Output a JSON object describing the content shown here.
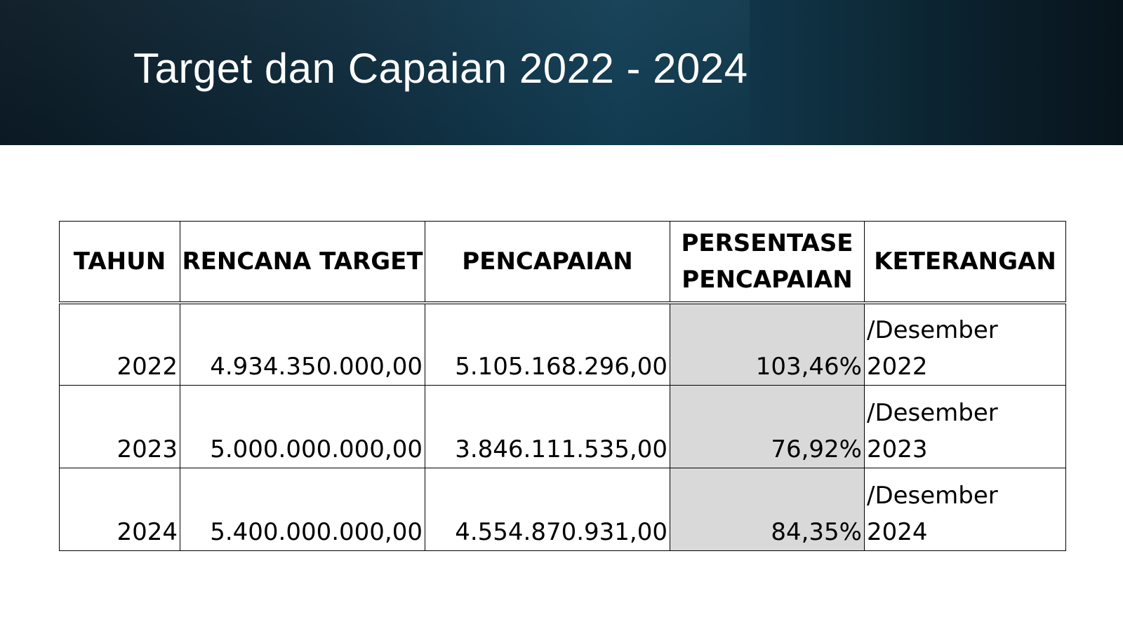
{
  "slide": {
    "title": "Target dan Capaian 2022 - 2024"
  },
  "table": {
    "headers": {
      "tahun": "TAHUN",
      "rencana_target": "RENCANA TARGET",
      "pencapaian": "PENCAPAIAN",
      "persentase_line1": "PERSENTASE",
      "persentase_line2": "PENCAPAIAN",
      "keterangan": "KETERANGAN"
    },
    "rows": [
      {
        "tahun": "2022",
        "rencana_target": "4.934.350.000,00",
        "pencapaian": "5.105.168.296,00",
        "persentase": "103,46%",
        "keterangan_line1": "/Desember",
        "keterangan_line2": "2022"
      },
      {
        "tahun": "2023",
        "rencana_target": "5.000.000.000,00",
        "pencapaian": "3.846.111.535,00",
        "persentase": "76,92%",
        "keterangan_line1": "/Desember",
        "keterangan_line2": "2023"
      },
      {
        "tahun": "2024",
        "rencana_target": "5.400.000.000,00",
        "pencapaian": "4.554.870.931,00",
        "persentase": "84,35%",
        "keterangan_line1": "/Desember",
        "keterangan_line2": "2024"
      }
    ]
  },
  "colors": {
    "banner_dark": "#0b1a24",
    "banner_mid": "#123e55",
    "highlight_cell": "#d9d9d9"
  }
}
